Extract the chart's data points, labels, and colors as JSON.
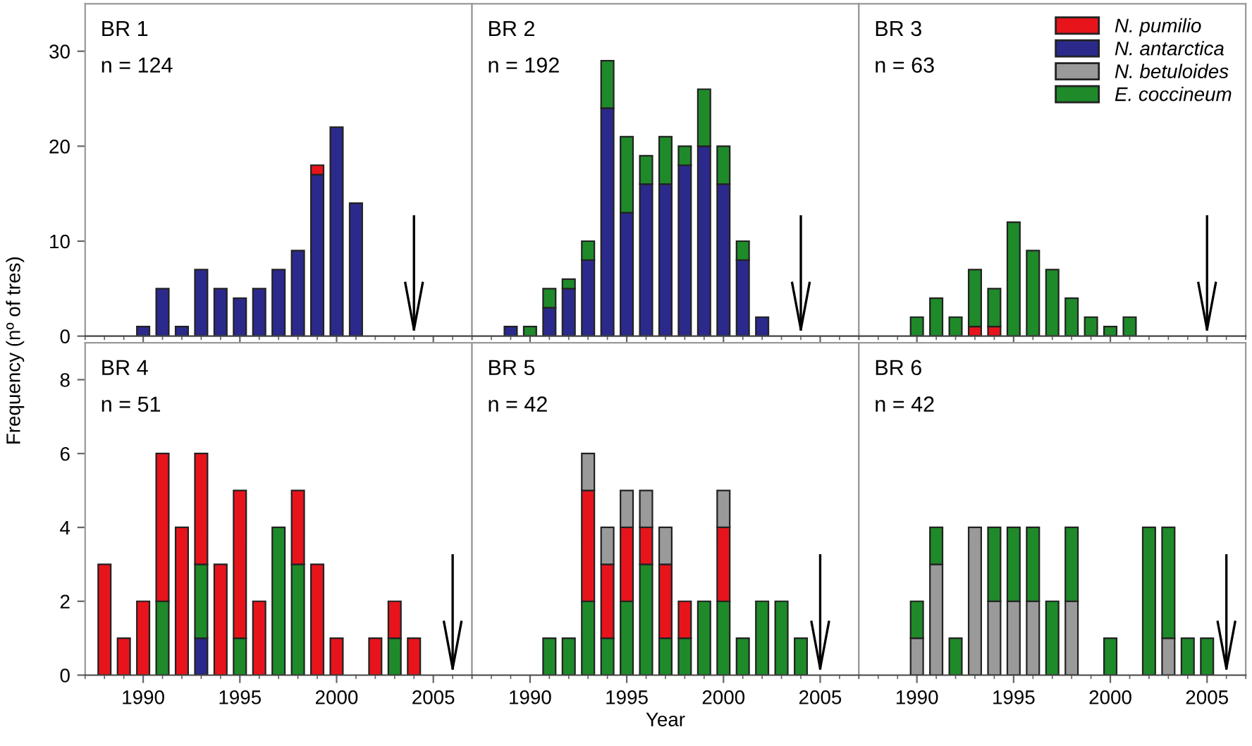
{
  "chart_data": [
    {
      "type": "bar",
      "stacked": true,
      "title": "BR 1",
      "subtitle": "n = 124",
      "ylabel": "Frequency (nº of tres)",
      "x": [
        1990,
        1991,
        1992,
        1993,
        1994,
        1995,
        1996,
        1997,
        1998,
        1999,
        2000,
        2001
      ],
      "xlim": [
        1987,
        2007
      ],
      "xticks": [
        1990,
        1995,
        2000,
        2005
      ],
      "ylim": [
        0,
        35
      ],
      "yticks": [
        0,
        10,
        20,
        30
      ],
      "tick_labels": "y",
      "ref_lines": [
        {
          "axis": "x",
          "value": 2004
        }
      ],
      "series": [
        {
          "color": "#2b2a8c",
          "values": [
            1,
            5,
            1,
            7,
            5,
            4,
            5,
            7,
            9,
            17,
            22,
            14
          ]
        },
        {
          "color": "#e8141c",
          "values": [
            0,
            0,
            0,
            0,
            0,
            0,
            0,
            0,
            0,
            1,
            0,
            0
          ]
        }
      ]
    },
    {
      "type": "bar",
      "stacked": true,
      "title": "BR 2",
      "subtitle": "n = 192",
      "x": [
        1989,
        1990,
        1991,
        1992,
        1993,
        1994,
        1995,
        1996,
        1997,
        1998,
        1999,
        2000,
        2001,
        2002
      ],
      "xlim": [
        1987,
        2007
      ],
      "xticks": [
        1990,
        1995,
        2000,
        2005
      ],
      "ylim": [
        0,
        35
      ],
      "yticks": [
        0,
        10,
        20,
        30
      ],
      "tick_labels": false,
      "ref_lines": [
        {
          "axis": "x",
          "value": 2004
        }
      ],
      "series": [
        {
          "color": "#2b2a8c",
          "values": [
            1,
            0,
            3,
            5,
            8,
            24,
            13,
            16,
            16,
            18,
            20,
            16,
            8,
            2
          ]
        },
        {
          "color": "#1f8a2a",
          "values": [
            0,
            1,
            2,
            1,
            2,
            5,
            8,
            3,
            5,
            2,
            6,
            4,
            2,
            0
          ]
        }
      ]
    },
    {
      "type": "bar",
      "stacked": true,
      "title": "BR 3",
      "subtitle": "n = 63",
      "x": [
        1990,
        1991,
        1992,
        1993,
        1994,
        1995,
        1996,
        1997,
        1998,
        1999,
        2000,
        2001
      ],
      "xlim": [
        1987,
        2007
      ],
      "xticks": [
        1990,
        1995,
        2000,
        2005
      ],
      "ylim": [
        0,
        35
      ],
      "yticks": [
        0,
        10,
        20,
        30
      ],
      "tick_labels": false,
      "legend": "top right",
      "ref_lines": [
        {
          "axis": "x",
          "value": 2005
        }
      ],
      "series": [
        {
          "name": "N. pumilio",
          "color": "#e8141c",
          "values": [
            0,
            0,
            0,
            1,
            1,
            0,
            0,
            0,
            0,
            0,
            0,
            0
          ]
        },
        {
          "name": "N. antarctica",
          "color": "#2b2a8c",
          "values": [
            0,
            0,
            0,
            0,
            0,
            0,
            0,
            0,
            0,
            0,
            0,
            0
          ]
        },
        {
          "name": "N. betuloides",
          "color": "#9a9a9a",
          "values": [
            0,
            0,
            0,
            0,
            0,
            0,
            0,
            0,
            0,
            0,
            0,
            0
          ]
        },
        {
          "name": "E. coccineum",
          "color": "#1f8a2a",
          "values": [
            2,
            4,
            2,
            6,
            4,
            12,
            9,
            7,
            4,
            2,
            1,
            2
          ]
        }
      ]
    },
    {
      "type": "bar",
      "stacked": true,
      "title": "BR 4",
      "subtitle": "n = 51",
      "x": [
        1988,
        1989,
        1990,
        1991,
        1992,
        1993,
        1994,
        1995,
        1996,
        1997,
        1998,
        1999,
        2000,
        2001,
        2002,
        2003,
        2004
      ],
      "xlim": [
        1987,
        2007
      ],
      "xticks": [
        1990,
        1995,
        2000,
        2005
      ],
      "ylim": [
        0,
        9
      ],
      "yticks": [
        0,
        2,
        4,
        6,
        8
      ],
      "ref_lines": [
        {
          "axis": "x",
          "value": 2006
        }
      ],
      "series": [
        {
          "color": "#2b2a8c",
          "values": [
            0,
            0,
            0,
            0,
            0,
            1,
            0,
            0,
            0,
            0,
            0,
            0,
            0,
            0,
            0,
            0,
            0
          ]
        },
        {
          "color": "#1f8a2a",
          "values": [
            0,
            0,
            0,
            2,
            0,
            2,
            0,
            1,
            0,
            4,
            3,
            0,
            0,
            0,
            0,
            1,
            0
          ]
        },
        {
          "color": "#e8141c",
          "values": [
            3,
            1,
            2,
            4,
            4,
            3,
            3,
            4,
            2,
            0,
            2,
            3,
            1,
            0,
            1,
            1,
            1
          ]
        }
      ]
    },
    {
      "type": "bar",
      "stacked": true,
      "title": "BR 5",
      "subtitle": "n = 42",
      "xlabel": "Year",
      "x": [
        1991,
        1992,
        1993,
        1994,
        1995,
        1996,
        1997,
        1998,
        1999,
        2000,
        2001,
        2002,
        2003,
        2004
      ],
      "xlim": [
        1987,
        2007
      ],
      "xticks": [
        1990,
        1995,
        2000,
        2005
      ],
      "ylim": [
        0,
        9
      ],
      "yticks": [
        0,
        2,
        4,
        6,
        8
      ],
      "tick_labels": "x",
      "ref_lines": [
        {
          "axis": "x",
          "value": 2005
        }
      ],
      "series": [
        {
          "color": "#1f8a2a",
          "values": [
            1,
            1,
            2,
            1,
            2,
            3,
            1,
            1,
            2,
            2,
            1,
            2,
            2,
            1
          ]
        },
        {
          "color": "#e8141c",
          "values": [
            0,
            0,
            3,
            2,
            2,
            1,
            2,
            1,
            0,
            2,
            0,
            0,
            0,
            0
          ]
        },
        {
          "color": "#9a9a9a",
          "values": [
            0,
            0,
            1,
            1,
            1,
            1,
            1,
            0,
            0,
            1,
            0,
            0,
            0,
            0
          ]
        }
      ]
    },
    {
      "type": "bar",
      "stacked": true,
      "title": "BR 6",
      "subtitle": "n = 42",
      "x": [
        1990,
        1991,
        1992,
        1993,
        1994,
        1995,
        1996,
        1997,
        1998,
        2000,
        2002,
        2003,
        2004,
        2005
      ],
      "xlim": [
        1987,
        2007
      ],
      "xticks": [
        1990,
        1995,
        2000,
        2005
      ],
      "ylim": [
        0,
        9
      ],
      "yticks": [
        0,
        2,
        4,
        6,
        8
      ],
      "tick_labels": "x",
      "ref_lines": [
        {
          "axis": "x",
          "value": 2006
        }
      ],
      "series": [
        {
          "color": "#9a9a9a",
          "values": [
            1,
            3,
            0,
            4,
            2,
            2,
            2,
            0,
            2,
            0,
            0,
            1,
            0,
            0
          ]
        },
        {
          "color": "#1f8a2a",
          "values": [
            1,
            1,
            1,
            0,
            2,
            2,
            2,
            2,
            2,
            1,
            4,
            3,
            1,
            1
          ]
        }
      ]
    }
  ]
}
